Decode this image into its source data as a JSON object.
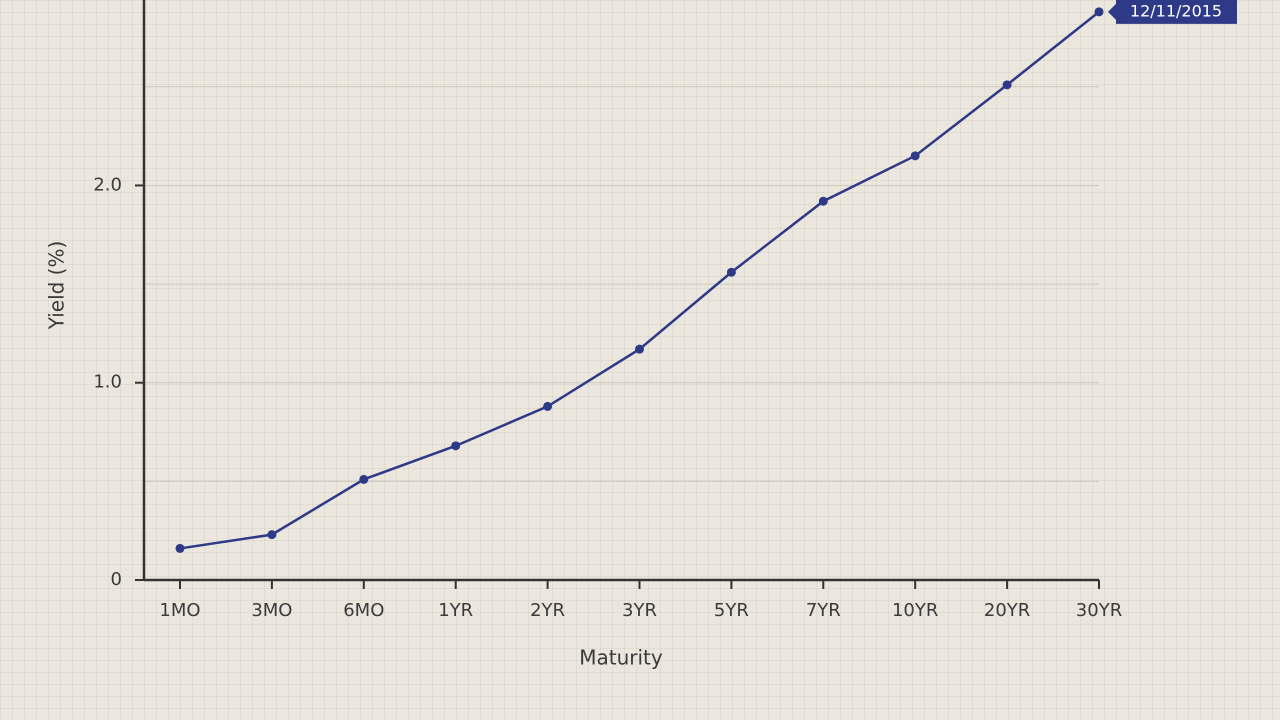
{
  "chart_data": {
    "type": "line",
    "x_label": "Maturity",
    "y_label": "Yield (%)",
    "categories": [
      "1MO",
      "3MO",
      "6MO",
      "1YR",
      "2YR",
      "3YR",
      "5YR",
      "7YR",
      "10YR",
      "20YR",
      "30YR"
    ],
    "series": [
      {
        "name": "12/11/2015",
        "color": "#2e3a87",
        "values": [
          0.16,
          0.23,
          0.51,
          0.68,
          0.88,
          1.17,
          1.56,
          1.92,
          2.15,
          2.51,
          2.88
        ]
      }
    ],
    "ylim": [
      0,
      2.94
    ],
    "yticks": [
      0,
      {
        "value": 1,
        "label": "1.0"
      },
      {
        "value": 2,
        "label": "2.0"
      }
    ],
    "minor_grid": [
      0.5,
      1.5,
      2.5
    ],
    "grid": true
  }
}
